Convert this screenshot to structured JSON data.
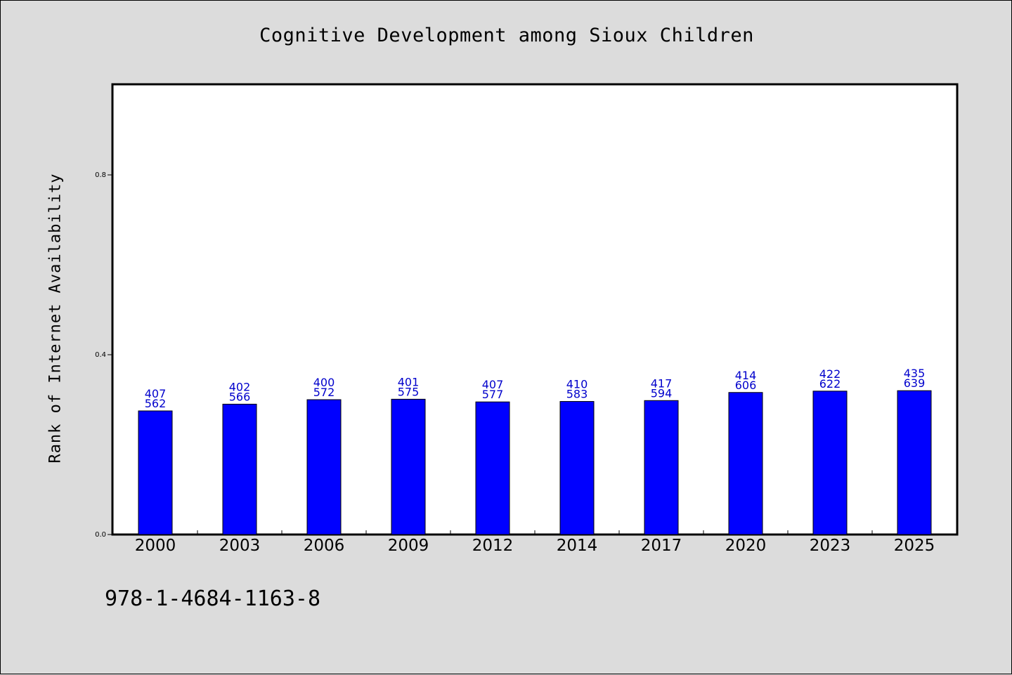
{
  "chart_data": {
    "type": "bar",
    "title": "Cognitive Development among Sioux Children",
    "ylabel": "Rank of Internet Availability",
    "xlabel": "",
    "ylim": [
      0,
      1.0
    ],
    "yticks": [
      0.0,
      0.4,
      0.8
    ],
    "ytick_labels": [
      "0.0",
      "0.4",
      "0.8"
    ],
    "categories": [
      "2000",
      "2003",
      "2006",
      "2009",
      "2012",
      "2014",
      "2017",
      "2020",
      "2023",
      "2025"
    ],
    "values": [
      0.275,
      0.29,
      0.3,
      0.301,
      0.295,
      0.296,
      0.298,
      0.316,
      0.319,
      0.32
    ],
    "data_labels_top": [
      "407",
      "402",
      "400",
      "401",
      "407",
      "410",
      "417",
      "414",
      "422",
      "435"
    ],
    "data_labels_bottom": [
      "562",
      "566",
      "572",
      "575",
      "577",
      "583",
      "594",
      "606",
      "622",
      "639"
    ],
    "bar_color": "#0000ff",
    "label_color": "#0000cc",
    "grid": false,
    "legend": "none"
  },
  "footer": {
    "isbn": "978-1-4684-1163-8"
  }
}
